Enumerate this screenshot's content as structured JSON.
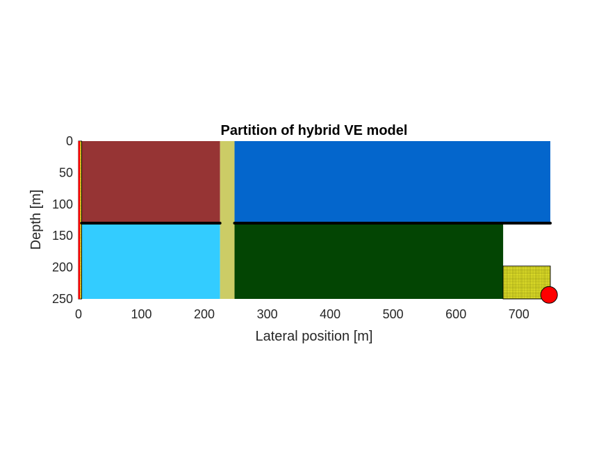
{
  "chart_data": {
    "type": "diagram",
    "title": "Partition of hybrid VE model",
    "xlabel": "Lateral position [m]",
    "ylabel": "Depth [m]",
    "xlim": [
      0,
      750
    ],
    "ylim": [
      0,
      250
    ],
    "y_reversed": true,
    "xticks": [
      0,
      100,
      200,
      300,
      400,
      500,
      600,
      700
    ],
    "yticks": [
      0,
      50,
      100,
      150,
      200,
      250
    ],
    "regions": [
      {
        "x": [
          5,
          225
        ],
        "y": [
          0,
          130
        ],
        "color": "#963434"
      },
      {
        "x": [
          5,
          225
        ],
        "y": [
          130,
          250
        ],
        "color": "#33CCFF"
      },
      {
        "x": [
          225,
          248
        ],
        "y": [
          0,
          250
        ],
        "color": "#CCCC66"
      },
      {
        "x": [
          248,
          750
        ],
        "y": [
          0,
          130
        ],
        "color": "#0466CC"
      },
      {
        "x": [
          248,
          675
        ],
        "y": [
          130,
          250
        ],
        "color": "#034503"
      }
    ],
    "fine_grid_regions": [
      {
        "x": [
          0,
          5
        ],
        "y": [
          0,
          250
        ],
        "color": "#FFFF33"
      },
      {
        "x": [
          675,
          750
        ],
        "y": [
          198,
          250
        ],
        "color": "#FFFF33"
      }
    ],
    "boundary_edges": [
      {
        "x": 0,
        "y": [
          0,
          250
        ],
        "color": "#FF0000"
      }
    ],
    "sealing_faults": [
      {
        "x": [
          5,
          225
        ],
        "y": 130
      },
      {
        "x": [
          248,
          750
        ],
        "y": 130
      }
    ],
    "well": {
      "x": 748,
      "y": 247,
      "color": "#FF0000"
    }
  }
}
